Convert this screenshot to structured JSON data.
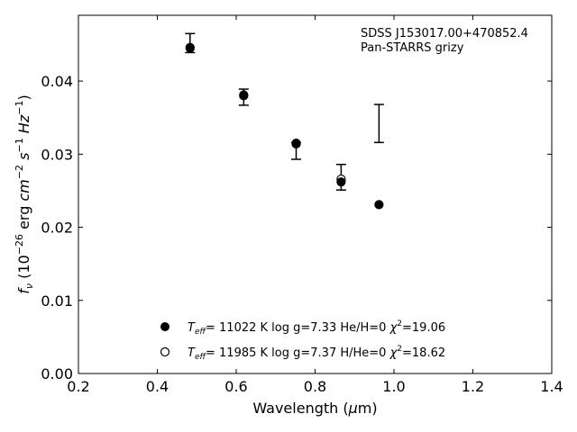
{
  "chart_data": {
    "type": "scatter",
    "annotation": [
      "SDSS J153017.00+470852.4",
      "Pan-STARRS grizy"
    ],
    "xlabel": "Wavelength (μm)",
    "ylabel": "fν (10⁻²⁶ erg cm⁻² s⁻¹ Hz⁻¹)",
    "xlim": [
      0.2,
      1.4
    ],
    "ylim": [
      0.0,
      0.049
    ],
    "x_ticks": [
      "0.2",
      "0.4",
      "0.6",
      "0.8",
      "1.0",
      "1.2",
      "1.4"
    ],
    "y_ticks": [
      "0.00",
      "0.01",
      "0.02",
      "0.03",
      "0.04"
    ],
    "observed": [
      {
        "x": 0.483,
        "y": 0.0451,
        "ylow": 0.0439,
        "yhigh": 0.0465
      },
      {
        "x": 0.619,
        "y": 0.0378,
        "ylow": 0.0367,
        "yhigh": 0.0389
      },
      {
        "x": 0.752,
        "y": 0.031,
        "ylow": 0.0293,
        "yhigh": 0.0316
      },
      {
        "x": 0.866,
        "y": 0.0268,
        "ylow": 0.0251,
        "yhigh": 0.0286
      },
      {
        "x": 0.962,
        "y": 0.0342,
        "ylow": 0.0316,
        "yhigh": 0.0368
      }
    ],
    "series": [
      {
        "label": "T_eff= 11022 K  log g=7.33  He/H=0  χ²=19.06",
        "marker": "filled-circle",
        "x": [
          0.483,
          0.619,
          0.752,
          0.866,
          0.962
        ],
        "y": [
          0.0445,
          0.038,
          0.0314,
          0.0262,
          0.0231
        ]
      },
      {
        "label": "T_eff= 11985 K  log g=7.37  H/He=0  χ²=18.62",
        "marker": "open-circle",
        "x": [
          0.483,
          0.619,
          0.752,
          0.866
        ],
        "y": [
          0.0446,
          0.0381,
          0.0315,
          0.0266
        ]
      }
    ],
    "legend": {
      "placement": "lower-center",
      "entries": [
        {
          "teff": "= 11022 K  log g=7.33  He/H=0",
          "chi": "=19.06"
        },
        {
          "teff": "= 11985 K  log g=7.37  H/He=0",
          "chi": "=18.62"
        }
      ]
    },
    "grid": false,
    "colors": {
      "marker": "#000000",
      "axes": "#000000",
      "background": "#ffffff"
    }
  }
}
